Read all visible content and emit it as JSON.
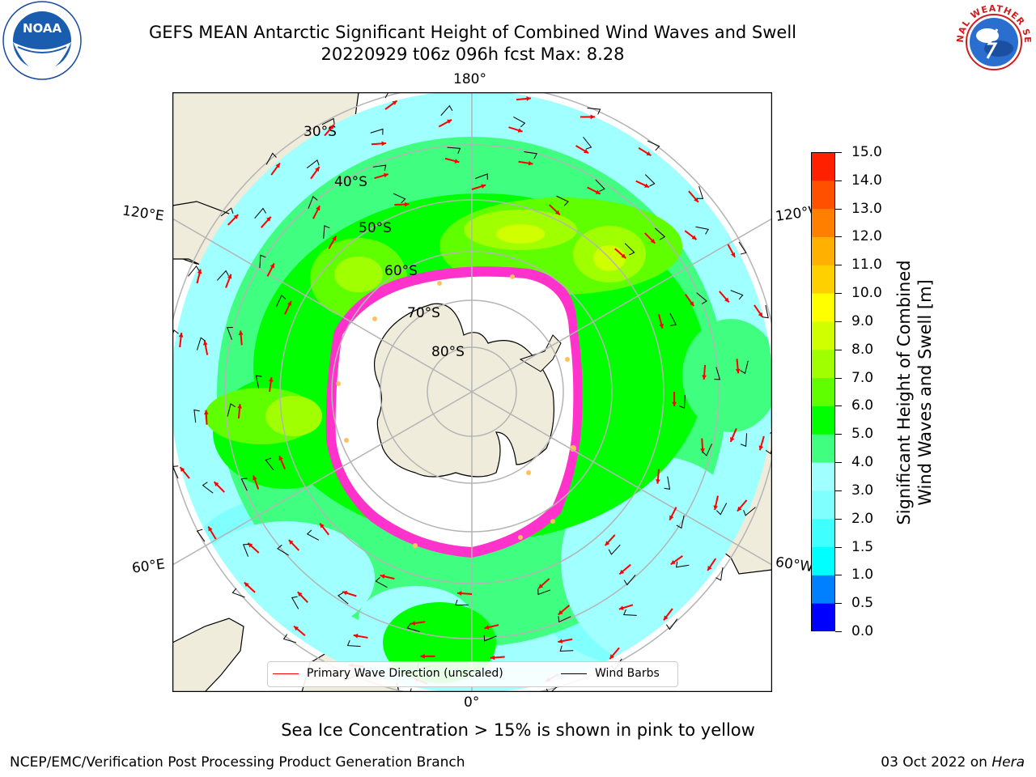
{
  "title": {
    "line1": "GEFS MEAN Antarctic Significant Height of Combined Wind Waves and Swell",
    "line2": "20220929 t06z 096h fcst   Max: 8.28"
  },
  "map": {
    "projection": "south-polar-stereographic",
    "longitude_labels": {
      "top": "180°",
      "left_upper": "120°E",
      "right_upper": "120°W",
      "left_lower": "60°E",
      "right_lower": "60°W",
      "bottom": "0°"
    },
    "latitude_labels": [
      "30°S",
      "40°S",
      "50°S",
      "60°S",
      "70°S",
      "80°S"
    ],
    "colors": {
      "land": "#efecdc",
      "ice_interior": "#ffffff",
      "sea_ice_edge": "#ff33cc",
      "grid": "#b4b4b4",
      "arrow": "#ff0000",
      "barb": "#000000"
    }
  },
  "legend": {
    "wave_direction": "Primary Wave Direction (unscaled)",
    "wind_barbs": "Wind Barbs"
  },
  "colorbar": {
    "label_line1": "Significant Height of Combined",
    "label_line2": "Wind Waves and Swell [m]",
    "ticks": [
      "0.0",
      "0.5",
      "1.0",
      "1.5",
      "2.0",
      "3.0",
      "4.0",
      "5.0",
      "6.0",
      "7.0",
      "8.0",
      "9.0",
      "10.0",
      "11.0",
      "12.0",
      "13.0",
      "14.0",
      "15.0"
    ],
    "colors": [
      "#0000ff",
      "#0080ff",
      "#00ffff",
      "#40ffff",
      "#80ffff",
      "#a0ffff",
      "#40ff80",
      "#00ff00",
      "#60ff00",
      "#a0ff00",
      "#d0ff00",
      "#ffff00",
      "#ffd000",
      "#ffb000",
      "#ff8000",
      "#ff5000",
      "#ff2000"
    ]
  },
  "sea_ice_note": "Sea Ice Concentration > 15% is shown in pink to yellow",
  "footer": {
    "left": "NCEP/EMC/Verification Post Processing Product Generation Branch",
    "right_date": "03 Oct 2022 on ",
    "right_host": "Hera"
  },
  "logos": {
    "noaa": "NOAA",
    "nws": "NATIONAL WEATHER SERVICE"
  }
}
